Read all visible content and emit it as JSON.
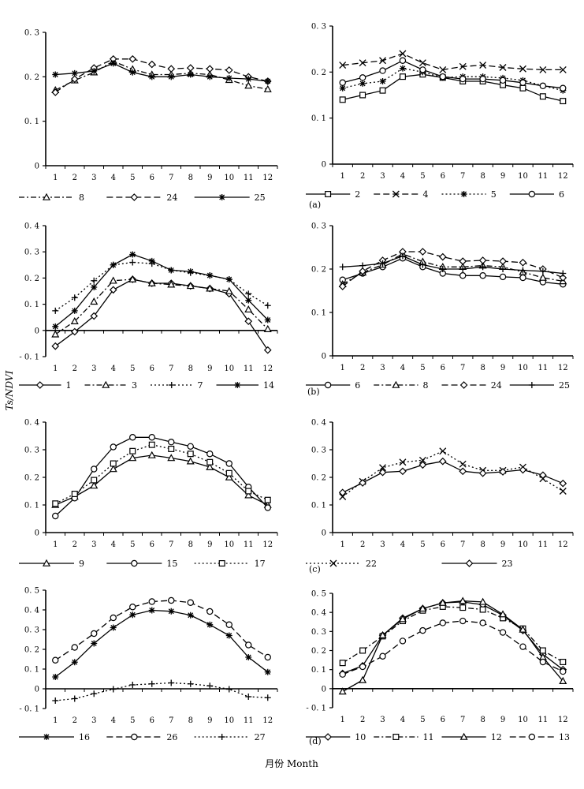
{
  "figure": {
    "ylabel": "Ts/NDVI",
    "xlabel": "月份 Month",
    "panel_labels": [
      "(a)",
      "(b)",
      "(c)",
      "(d)"
    ]
  },
  "chart_data": [
    {
      "type": "line",
      "id": "a-left",
      "title": "",
      "xlabel": "",
      "ylabel": "",
      "x": [
        1,
        2,
        3,
        4,
        5,
        6,
        7,
        8,
        9,
        10,
        11,
        12
      ],
      "ylim": [
        0,
        0.3
      ],
      "yticks": [
        0,
        0.1,
        0.2,
        0.3
      ],
      "ytick_labels": [
        "0",
        "0. 1",
        "0. 2",
        "0. 3"
      ],
      "legend_position": "bottom",
      "series": [
        {
          "name": "8",
          "marker": "triangle",
          "dash": "dashdot",
          "values": [
            0.17,
            0.192,
            0.21,
            0.235,
            0.217,
            0.205,
            0.205,
            0.208,
            0.205,
            0.193,
            0.18,
            0.172
          ]
        },
        {
          "name": "24",
          "marker": "diamond",
          "dash": "longdash",
          "values": [
            0.165,
            0.195,
            0.22,
            0.24,
            0.24,
            0.228,
            0.218,
            0.22,
            0.218,
            0.215,
            0.2,
            0.19
          ]
        },
        {
          "name": "25",
          "marker": "asterisk",
          "dash": "solid",
          "values": [
            0.205,
            0.208,
            0.213,
            0.23,
            0.21,
            0.2,
            0.2,
            0.205,
            0.2,
            0.197,
            0.195,
            0.19
          ]
        }
      ]
    },
    {
      "type": "line",
      "id": "a-right",
      "title": "",
      "xlabel": "",
      "ylabel": "",
      "x": [
        1,
        2,
        3,
        4,
        5,
        6,
        7,
        8,
        9,
        10,
        11,
        12
      ],
      "ylim": [
        0,
        0.3
      ],
      "yticks": [
        0,
        0.1,
        0.2,
        0.3
      ],
      "ytick_labels": [
        "0",
        "0. 1",
        "0. 2",
        "0. 3"
      ],
      "legend_position": "bottom",
      "series": [
        {
          "name": "2",
          "marker": "square",
          "dash": "solid",
          "values": [
            0.14,
            0.15,
            0.16,
            0.19,
            0.195,
            0.188,
            0.18,
            0.18,
            0.172,
            0.165,
            0.147,
            0.137
          ]
        },
        {
          "name": "4",
          "marker": "x",
          "dash": "longdash",
          "values": [
            0.215,
            0.22,
            0.225,
            0.24,
            0.22,
            0.205,
            0.212,
            0.215,
            0.21,
            0.207,
            0.205,
            0.205
          ]
        },
        {
          "name": "5",
          "marker": "asterisk",
          "dash": "dot",
          "values": [
            0.165,
            0.175,
            0.18,
            0.208,
            0.2,
            0.188,
            0.19,
            0.19,
            0.187,
            0.182,
            0.17,
            0.16
          ]
        },
        {
          "name": "6",
          "marker": "circle",
          "dash": "solid",
          "values": [
            0.177,
            0.188,
            0.203,
            0.225,
            0.205,
            0.19,
            0.185,
            0.185,
            0.182,
            0.177,
            0.17,
            0.165
          ]
        }
      ]
    },
    {
      "type": "line",
      "id": "b-left",
      "title": "",
      "xlabel": "",
      "ylabel": "",
      "x": [
        1,
        2,
        3,
        4,
        5,
        6,
        7,
        8,
        9,
        10,
        11,
        12
      ],
      "ylim": [
        -0.1,
        0.4
      ],
      "yticks": [
        -0.1,
        0,
        0.1,
        0.2,
        0.3,
        0.4
      ],
      "ytick_labels": [
        "- 0. 1",
        "0",
        "0. 1",
        "0. 2",
        "0. 3",
        "0. 4"
      ],
      "legend_position": "bottom",
      "series": [
        {
          "name": "1",
          "marker": "diamond",
          "dash": "solid",
          "values": [
            -0.06,
            -0.005,
            0.055,
            0.155,
            0.195,
            0.18,
            0.18,
            0.17,
            0.16,
            0.14,
            0.035,
            -0.075
          ]
        },
        {
          "name": "3",
          "marker": "triangle",
          "dash": "dashdot",
          "values": [
            -0.015,
            0.035,
            0.11,
            0.19,
            0.195,
            0.18,
            0.175,
            0.17,
            0.16,
            0.15,
            0.08,
            0.005
          ]
        },
        {
          "name": "7",
          "marker": "plus",
          "dash": "dot",
          "values": [
            0.075,
            0.125,
            0.19,
            0.25,
            0.26,
            0.255,
            0.23,
            0.22,
            0.21,
            0.195,
            0.14,
            0.095
          ]
        },
        {
          "name": "14",
          "marker": "asterisk",
          "dash": "solid",
          "values": [
            0.015,
            0.075,
            0.165,
            0.25,
            0.29,
            0.265,
            0.23,
            0.225,
            0.21,
            0.195,
            0.115,
            0.04
          ]
        }
      ]
    },
    {
      "type": "line",
      "id": "b-right",
      "title": "",
      "xlabel": "",
      "ylabel": "",
      "x": [
        1,
        2,
        3,
        4,
        5,
        6,
        7,
        8,
        9,
        10,
        11,
        12
      ],
      "ylim": [
        0,
        0.3
      ],
      "yticks": [
        0,
        0.1,
        0.2,
        0.3
      ],
      "ytick_labels": [
        "0",
        "0. 1",
        "0. 2",
        "0. 3"
      ],
      "legend_position": "bottom",
      "series": [
        {
          "name": "6",
          "marker": "circle",
          "dash": "solid",
          "values": [
            0.175,
            0.19,
            0.205,
            0.225,
            0.205,
            0.19,
            0.185,
            0.185,
            0.182,
            0.18,
            0.17,
            0.165
          ]
        },
        {
          "name": "8",
          "marker": "triangle",
          "dash": "dashdot",
          "values": [
            0.165,
            0.192,
            0.21,
            0.235,
            0.217,
            0.205,
            0.205,
            0.208,
            0.205,
            0.193,
            0.18,
            0.172
          ]
        },
        {
          "name": "24",
          "marker": "diamond",
          "dash": "longdash",
          "values": [
            0.16,
            0.195,
            0.22,
            0.24,
            0.24,
            0.228,
            0.218,
            0.22,
            0.218,
            0.215,
            0.2,
            0.18
          ]
        },
        {
          "name": "25",
          "marker": "plus",
          "dash": "solid",
          "values": [
            0.205,
            0.208,
            0.213,
            0.23,
            0.21,
            0.2,
            0.2,
            0.205,
            0.2,
            0.197,
            0.195,
            0.19
          ]
        }
      ]
    },
    {
      "type": "line",
      "id": "c-left",
      "title": "",
      "xlabel": "",
      "ylabel": "",
      "x": [
        1,
        2,
        3,
        4,
        5,
        6,
        7,
        8,
        9,
        10,
        11,
        12
      ],
      "ylim": [
        0,
        0.4
      ],
      "yticks": [
        0,
        0.1,
        0.2,
        0.3,
        0.4
      ],
      "ytick_labels": [
        "0",
        "0. 1",
        "0. 2",
        "0. 3",
        "0. 4"
      ],
      "legend_position": "bottom",
      "series": [
        {
          "name": "9",
          "marker": "triangle",
          "dash": "solid",
          "values": [
            0.1,
            0.13,
            0.17,
            0.23,
            0.27,
            0.28,
            0.27,
            0.258,
            0.237,
            0.2,
            0.135,
            0.1
          ]
        },
        {
          "name": "15",
          "marker": "circle",
          "dash": "solid",
          "values": [
            0.06,
            0.125,
            0.23,
            0.31,
            0.345,
            0.345,
            0.328,
            0.312,
            0.285,
            0.25,
            0.165,
            0.09
          ]
        },
        {
          "name": "17",
          "marker": "square",
          "dash": "dot",
          "values": [
            0.105,
            0.14,
            0.19,
            0.25,
            0.295,
            0.318,
            0.303,
            0.285,
            0.255,
            0.215,
            0.15,
            0.118
          ]
        }
      ]
    },
    {
      "type": "line",
      "id": "c-right",
      "title": "",
      "xlabel": "",
      "ylabel": "",
      "x": [
        1,
        2,
        3,
        4,
        5,
        6,
        7,
        8,
        9,
        10,
        11,
        12
      ],
      "ylim": [
        0,
        0.4
      ],
      "yticks": [
        0,
        0.1,
        0.2,
        0.3,
        0.4
      ],
      "ytick_labels": [
        "0",
        "0. 1",
        "0. 2",
        "0. 3",
        "0. 4"
      ],
      "legend_position": "bottom",
      "series": [
        {
          "name": "22",
          "marker": "x",
          "dash": "dot",
          "values": [
            0.13,
            0.185,
            0.235,
            0.255,
            0.262,
            0.295,
            0.248,
            0.225,
            0.225,
            0.237,
            0.195,
            0.15
          ]
        },
        {
          "name": "23",
          "marker": "diamond",
          "dash": "solid",
          "values": [
            0.145,
            0.18,
            0.218,
            0.222,
            0.245,
            0.258,
            0.222,
            0.215,
            0.22,
            0.227,
            0.208,
            0.178
          ]
        }
      ]
    },
    {
      "type": "line",
      "id": "d-left",
      "title": "",
      "xlabel": "",
      "ylabel": "",
      "x": [
        1,
        2,
        3,
        4,
        5,
        6,
        7,
        8,
        9,
        10,
        11,
        12
      ],
      "ylim": [
        -0.1,
        0.5
      ],
      "yticks": [
        -0.1,
        0,
        0.1,
        0.2,
        0.3,
        0.4,
        0.5
      ],
      "ytick_labels": [
        "- 0. 1",
        "0",
        "0. 1",
        "0. 2",
        "0. 3",
        "0. 4",
        "0. 5"
      ],
      "legend_position": "bottom",
      "series": [
        {
          "name": "16",
          "marker": "asterisk",
          "dash": "solid",
          "values": [
            0.06,
            0.135,
            0.23,
            0.31,
            0.375,
            0.398,
            0.393,
            0.373,
            0.325,
            0.27,
            0.16,
            0.085
          ]
        },
        {
          "name": "26",
          "marker": "circle",
          "dash": "longdash",
          "values": [
            0.145,
            0.21,
            0.28,
            0.36,
            0.415,
            0.442,
            0.448,
            0.437,
            0.392,
            0.325,
            0.222,
            0.16
          ]
        },
        {
          "name": "27",
          "marker": "plus",
          "dash": "dot",
          "values": [
            -0.06,
            -0.05,
            -0.025,
            -0.002,
            0.02,
            0.025,
            0.03,
            0.025,
            0.015,
            -0.002,
            -0.04,
            -0.045
          ]
        }
      ]
    },
    {
      "type": "line",
      "id": "d-right",
      "title": "",
      "xlabel": "",
      "ylabel": "",
      "x": [
        1,
        2,
        3,
        4,
        5,
        6,
        7,
        8,
        9,
        10,
        11,
        12
      ],
      "ylim": [
        -0.1,
        0.5
      ],
      "yticks": [
        -0.1,
        0,
        0.1,
        0.2,
        0.3,
        0.4,
        0.5
      ],
      "ytick_labels": [
        "- 0. 1",
        "0",
        "0. 1",
        "0. 2",
        "0. 3",
        "0. 4",
        "0. 5"
      ],
      "legend_position": "bottom",
      "series": [
        {
          "name": "10",
          "marker": "diamond",
          "dash": "solid",
          "values": [
            0.08,
            0.12,
            0.28,
            0.37,
            0.42,
            0.45,
            0.455,
            0.44,
            0.385,
            0.305,
            0.18,
            0.1
          ]
        },
        {
          "name": "11",
          "marker": "square",
          "dash": "dashdot",
          "values": [
            0.135,
            0.2,
            0.275,
            0.355,
            0.41,
            0.43,
            0.425,
            0.415,
            0.37,
            0.315,
            0.2,
            0.14
          ]
        },
        {
          "name": "12",
          "marker": "triangle",
          "dash": "solid",
          "values": [
            -0.015,
            0.045,
            0.28,
            0.365,
            0.42,
            0.45,
            0.46,
            0.455,
            0.39,
            0.31,
            0.165,
            0.04
          ]
        },
        {
          "name": "13",
          "marker": "circle",
          "dash": "longdash",
          "values": [
            0.075,
            0.115,
            0.17,
            0.25,
            0.305,
            0.345,
            0.355,
            0.345,
            0.295,
            0.22,
            0.14,
            0.09
          ]
        }
      ]
    }
  ]
}
